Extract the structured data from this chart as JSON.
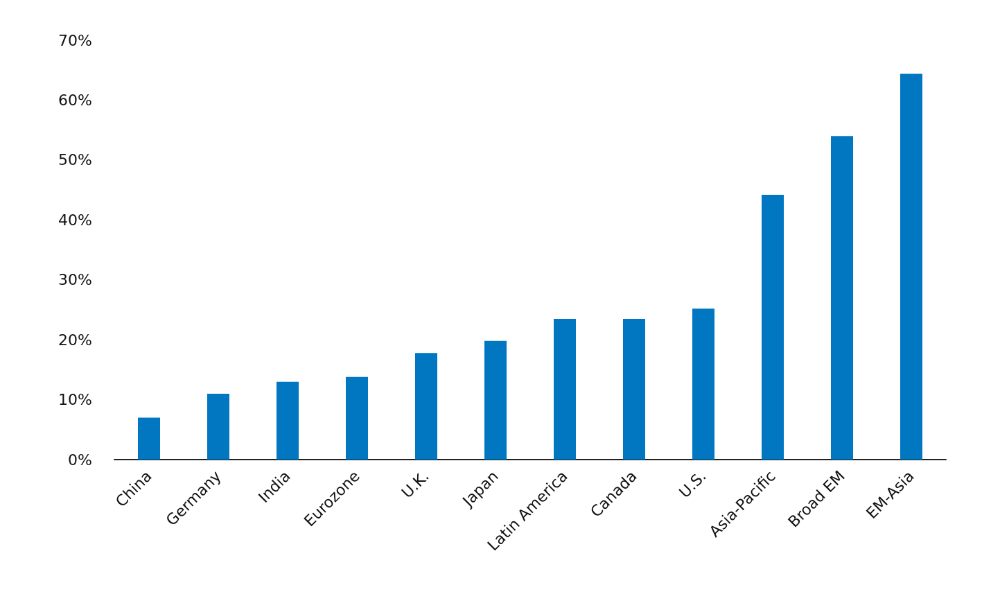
{
  "chart_data": {
    "type": "bar",
    "categories": [
      "China",
      "Germany",
      "India",
      "Eurozone",
      "U.K.",
      "Japan",
      "Latin America",
      "Canada",
      "U.S.",
      "Asia-Pacific",
      "Broad EM",
      "EM-Asia"
    ],
    "values": [
      7,
      11,
      13,
      13.8,
      17.8,
      19.8,
      23.5,
      23.5,
      25.2,
      44.2,
      54,
      64.4
    ],
    "color": "#0077c0",
    "ylim": [
      0,
      70
    ],
    "yticks": [
      {
        "value": 0,
        "label": "0%"
      },
      {
        "value": 10,
        "label": "10%"
      },
      {
        "value": 20,
        "label": "20%"
      },
      {
        "value": 30,
        "label": "30%"
      },
      {
        "value": 40,
        "label": "40%"
      },
      {
        "value": 50,
        "label": "50%"
      },
      {
        "value": 60,
        "label": "60%"
      },
      {
        "value": 70,
        "label": "70%"
      }
    ],
    "grid": false
  }
}
